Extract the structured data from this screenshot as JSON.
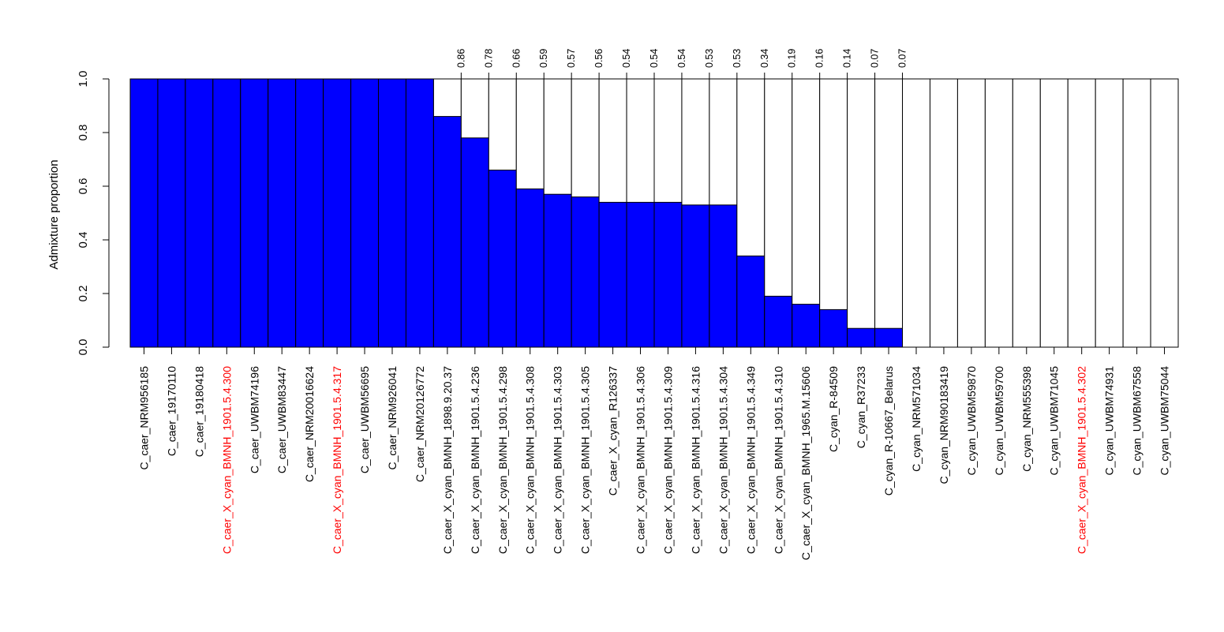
{
  "chart_data": {
    "type": "bar",
    "stacked": true,
    "ylabel": "Admixture proportion",
    "ylim": [
      0,
      1
    ],
    "yticks": [
      "0.0",
      "0.2",
      "0.4",
      "0.6",
      "0.8",
      "1.0"
    ],
    "ytick_values": [
      0,
      0.2,
      0.4,
      0.6,
      0.8,
      1.0
    ],
    "grid": false,
    "colors": {
      "fill": "#0000ff",
      "background_fill": "#ffffff",
      "edge": "#000000",
      "label_default": "#000000",
      "label_highlight": "#ff0000"
    },
    "categories": [
      "C_caer_NRM956185",
      "C_caer_19170110",
      "C_caer_19180418",
      "C_caer_X_cyan_BMNH_1901.5.4.300",
      "C_caer_UWBM74196",
      "C_caer_UWBM83447",
      "C_caer_NRM20016624",
      "C_caer_X_cyan_BMNH_1901.5.4.317",
      "C_caer_UWBM56695",
      "C_caer_NRM926041",
      "C_caer_NRM20126772",
      "C_caer_X_cyan_BMNH_1898.9.20.37",
      "C_caer_X_cyan_BMNH_1901.5.4.236",
      "C_caer_X_cyan_BMNH_1901.5.4.298",
      "C_caer_X_cyan_BMNH_1901.5.4.308",
      "C_caer_X_cyan_BMNH_1901.5.4.303",
      "C_caer_X_cyan_BMNH_1901.5.4.305",
      "C_caer_X_cyan_R126337",
      "C_caer_X_cyan_BMNH_1901.5.4.306",
      "C_caer_X_cyan_BMNH_1901.5.4.309",
      "C_caer_X_cyan_BMNH_1901.5.4.316",
      "C_caer_X_cyan_BMNH_1901.5.4.304",
      "C_caer_X_cyan_BMNH_1901.5.4.349",
      "C_caer_X_cyan_BMNH_1901.5.4.310",
      "C_caer_X_cyan_BMNH_1965.M.15606",
      "C_cyan_R-84509",
      "C_cyan_R37233",
      "C_cyan_R-10667_Belarus",
      "C_cyan_NRM571034",
      "C_cyan_NRM90183419",
      "C_cyan_UWBM59870",
      "C_cyan_UWBM59700",
      "C_cyan_NRM555398",
      "C_cyan_UWBM71045",
      "C_caer_X_cyan_BMNH_1901.5.4.302",
      "C_cyan_UWBM74931",
      "C_cyan_UWBM67558",
      "C_cyan_UWBM75044"
    ],
    "highlighted": [
      "C_caer_X_cyan_BMNH_1901.5.4.300",
      "C_caer_X_cyan_BMNH_1901.5.4.317",
      "C_caer_X_cyan_BMNH_1901.5.4.302"
    ],
    "values": [
      1,
      1,
      1,
      1,
      1,
      1,
      1,
      1,
      1,
      1,
      1,
      0.86,
      0.78,
      0.66,
      0.59,
      0.57,
      0.56,
      0.54,
      0.54,
      0.54,
      0.53,
      0.53,
      0.34,
      0.19,
      0.16,
      0.14,
      0.07,
      0.07,
      0,
      0,
      0,
      0,
      0,
      0,
      0,
      0,
      0,
      0
    ],
    "annotations": [
      null,
      null,
      null,
      null,
      null,
      null,
      null,
      null,
      null,
      null,
      null,
      "0.86",
      "0.78",
      "0.66",
      "0.59",
      "0.57",
      "0.56",
      "0.54",
      "0.54",
      "0.54",
      "0.53",
      "0.53",
      "0.34",
      "0.19",
      "0.16",
      "0.14",
      "0.07",
      "0.07",
      null,
      null,
      null,
      null,
      null,
      null,
      null,
      null,
      null,
      null
    ]
  }
}
